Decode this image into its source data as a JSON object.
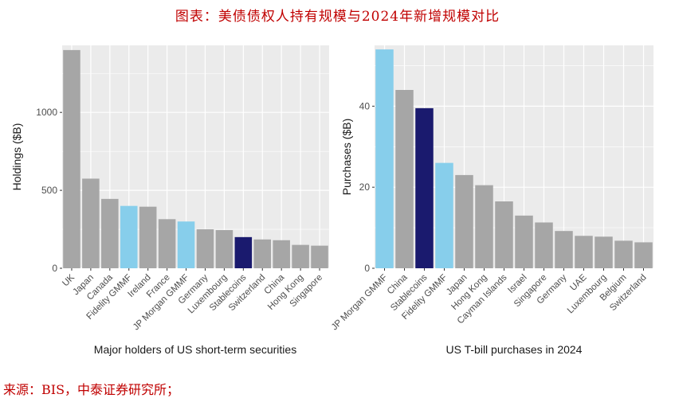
{
  "figure": {
    "title": "图表：美债债权人持有规模与2024年新增规模对比",
    "source": "来源：BIS，中泰证券研究所；"
  },
  "colors": {
    "panel_bg": "#ebebeb",
    "grid": "#ffffff",
    "gray_bar": "#a6a6a6",
    "fund_bar": "#87ceeb",
    "stablecoin_bar": "#1a1a6e",
    "title_red": "#c00000"
  },
  "chart_data": [
    {
      "type": "bar",
      "xlabel": "Major holders of US short-term securities",
      "ylabel": "Holdings ($B)",
      "ylim": [
        0,
        1430
      ],
      "yticks": [
        0,
        500,
        1000
      ],
      "grid": true,
      "categories": [
        "UK",
        "Japan",
        "Canada",
        "Fidelity GMMF",
        "Ireland",
        "France",
        "JP Morgan GMMF",
        "Germany",
        "Luxembourg",
        "Stablecoins",
        "Switzerland",
        "China",
        "Hong Kong",
        "Singapore"
      ],
      "values": [
        1400,
        575,
        445,
        400,
        395,
        315,
        300,
        250,
        245,
        200,
        185,
        180,
        150,
        145
      ],
      "color_groups": [
        "gray",
        "gray",
        "gray",
        "fund",
        "gray",
        "gray",
        "fund",
        "gray",
        "gray",
        "stablecoin",
        "gray",
        "gray",
        "gray",
        "gray"
      ]
    },
    {
      "type": "bar",
      "xlabel": "US T-bill purchases in 2024",
      "ylabel": "Purchases ($B)",
      "ylim": [
        0,
        55
      ],
      "yticks": [
        0,
        20,
        40
      ],
      "grid": true,
      "categories": [
        "JP Morgan GMMF",
        "China",
        "Stablecoins",
        "Fidelity GMMF",
        "Japan",
        "Hong Kong",
        "Cayman Islands",
        "Israel",
        "Singapore",
        "Germany",
        "UAE",
        "Luxembourg",
        "Belgium",
        "Switzerland"
      ],
      "values": [
        54,
        44,
        39.5,
        26,
        23,
        20.5,
        16.5,
        13,
        11.3,
        9.2,
        8,
        7.8,
        6.8,
        6.4
      ],
      "color_groups": [
        "fund",
        "gray",
        "stablecoin",
        "fund",
        "gray",
        "gray",
        "gray",
        "gray",
        "gray",
        "gray",
        "gray",
        "gray",
        "gray",
        "gray"
      ]
    }
  ]
}
